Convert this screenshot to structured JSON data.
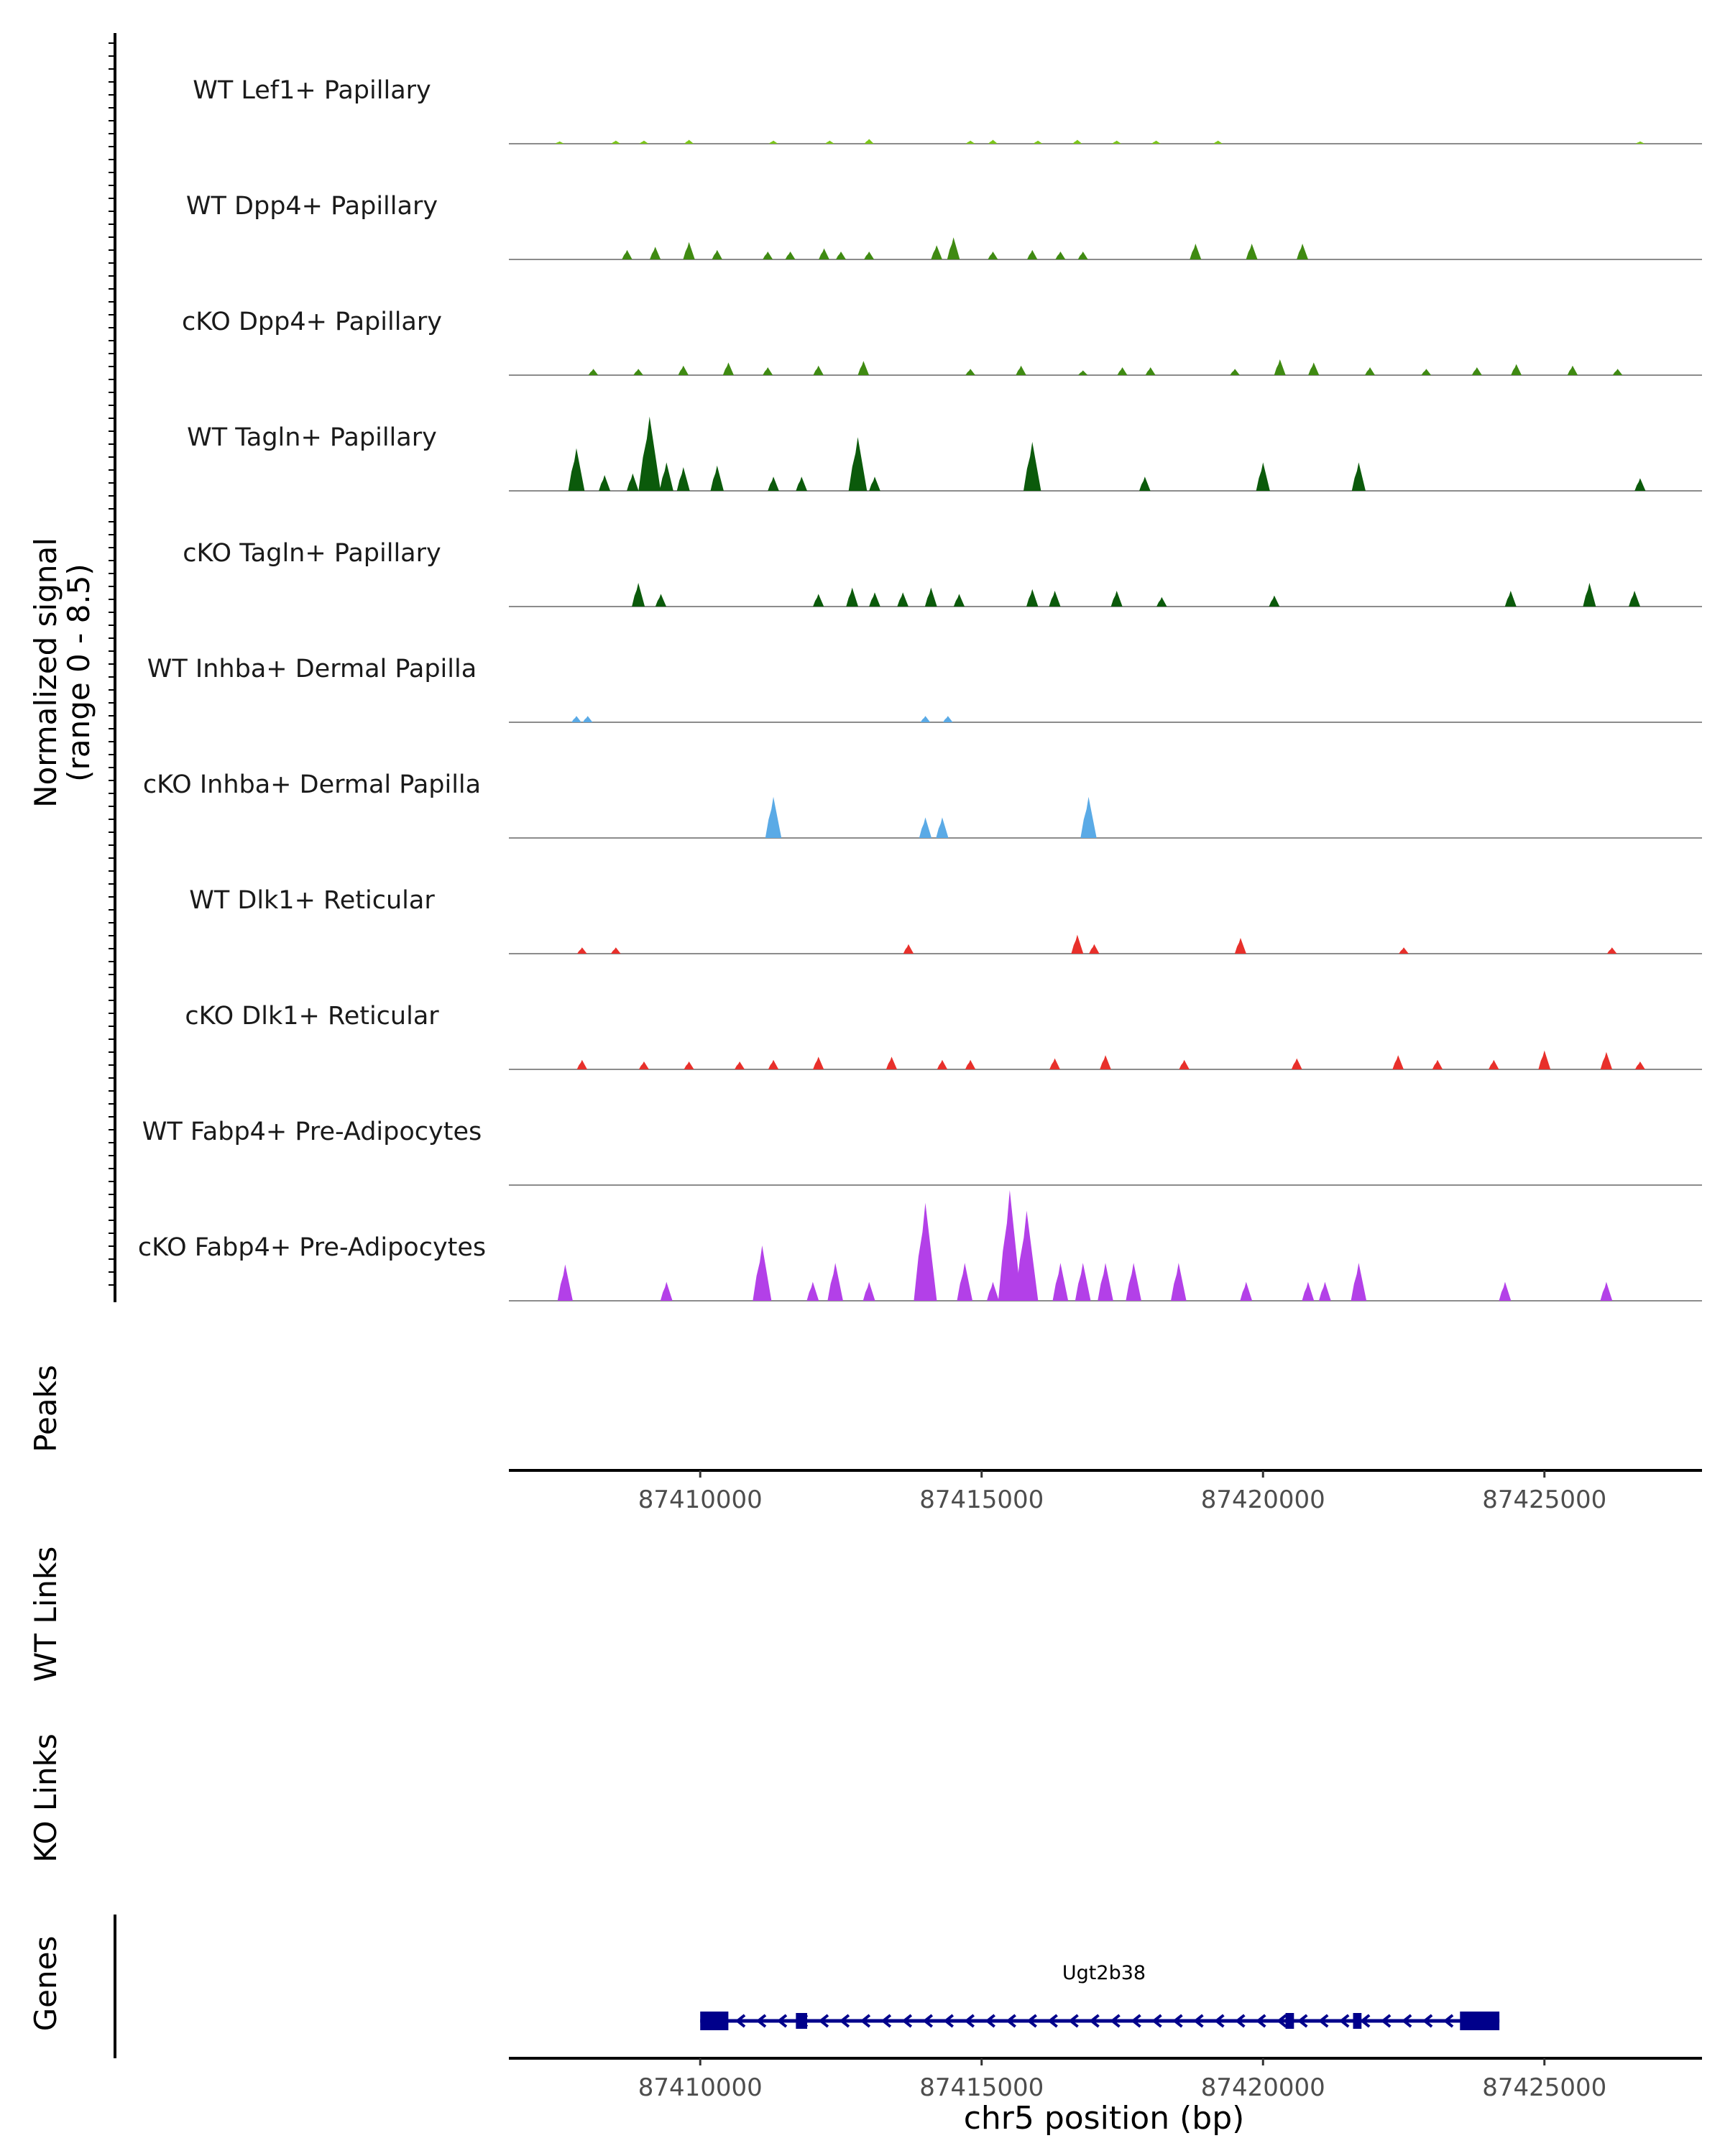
{
  "chart_data": {
    "type": "area",
    "title": "",
    "chromosome": "chr5",
    "xlabel": "chr5 position (bp)",
    "xlim": [
      87406600,
      87427800
    ],
    "xticks": [
      87410000,
      87415000,
      87420000,
      87425000
    ],
    "xtick_labels": [
      "87410000",
      "87415000",
      "87420000",
      "87425000"
    ],
    "ylabel": "Normalized signal",
    "ylabel_range": "(range 0 - 8.5)",
    "ylim": [
      0,
      8.5
    ],
    "tracks": [
      {
        "name": "WT Lef1+ Papillary",
        "color": "#7cc61a",
        "peaks": [
          [
            87407500,
            0.15
          ],
          [
            87408500,
            0.2
          ],
          [
            87409000,
            0.2
          ],
          [
            87409800,
            0.25
          ],
          [
            87411300,
            0.2
          ],
          [
            87412300,
            0.2
          ],
          [
            87413000,
            0.3
          ],
          [
            87414800,
            0.2
          ],
          [
            87415200,
            0.25
          ],
          [
            87416000,
            0.2
          ],
          [
            87416700,
            0.25
          ],
          [
            87417400,
            0.2
          ],
          [
            87418100,
            0.2
          ],
          [
            87419200,
            0.2
          ],
          [
            87426700,
            0.15
          ]
        ]
      },
      {
        "name": "WT Dpp4+ Papillary",
        "color": "#3f8a12",
        "peaks": [
          [
            87408700,
            0.6
          ],
          [
            87409200,
            0.8
          ],
          [
            87409800,
            1.1
          ],
          [
            87410300,
            0.6
          ],
          [
            87411200,
            0.5
          ],
          [
            87411600,
            0.5
          ],
          [
            87412200,
            0.7
          ],
          [
            87412500,
            0.5
          ],
          [
            87413000,
            0.5
          ],
          [
            87414200,
            0.9
          ],
          [
            87414500,
            1.4
          ],
          [
            87415200,
            0.5
          ],
          [
            87415900,
            0.6
          ],
          [
            87416400,
            0.5
          ],
          [
            87416800,
            0.5
          ],
          [
            87418800,
            1.0
          ],
          [
            87419800,
            1.0
          ],
          [
            87420700,
            1.0
          ]
        ]
      },
      {
        "name": "cKO Dpp4+ Papillary",
        "color": "#3f8a12",
        "peaks": [
          [
            87408100,
            0.4
          ],
          [
            87408900,
            0.4
          ],
          [
            87409700,
            0.6
          ],
          [
            87410500,
            0.8
          ],
          [
            87411200,
            0.5
          ],
          [
            87412100,
            0.6
          ],
          [
            87412900,
            0.9
          ],
          [
            87414800,
            0.4
          ],
          [
            87415700,
            0.6
          ],
          [
            87416800,
            0.3
          ],
          [
            87417500,
            0.5
          ],
          [
            87418000,
            0.5
          ],
          [
            87419500,
            0.4
          ],
          [
            87420300,
            1.0
          ],
          [
            87420900,
            0.8
          ],
          [
            87421900,
            0.5
          ],
          [
            87422900,
            0.4
          ],
          [
            87423800,
            0.5
          ],
          [
            87424500,
            0.7
          ],
          [
            87425500,
            0.6
          ],
          [
            87426300,
            0.4
          ]
        ]
      },
      {
        "name": "WT Tagln+ Papillary",
        "color": "#0b5a0b",
        "peaks": [
          [
            87407800,
            2.7
          ],
          [
            87408300,
            1.0
          ],
          [
            87408800,
            1.1
          ],
          [
            87409100,
            4.7
          ],
          [
            87409400,
            1.8
          ],
          [
            87409700,
            1.5
          ],
          [
            87410300,
            1.6
          ],
          [
            87411300,
            0.9
          ],
          [
            87411800,
            0.9
          ],
          [
            87412800,
            3.4
          ],
          [
            87413100,
            0.9
          ],
          [
            87415900,
            3.1
          ],
          [
            87417900,
            0.9
          ],
          [
            87420000,
            1.8
          ],
          [
            87421700,
            1.8
          ],
          [
            87426700,
            0.8
          ]
        ]
      },
      {
        "name": "cKO Tagln+ Papillary",
        "color": "#0b5a0b",
        "peaks": [
          [
            87408900,
            1.5
          ],
          [
            87409300,
            0.8
          ],
          [
            87412100,
            0.8
          ],
          [
            87412700,
            1.2
          ],
          [
            87413100,
            0.9
          ],
          [
            87413600,
            0.9
          ],
          [
            87414100,
            1.2
          ],
          [
            87414600,
            0.8
          ],
          [
            87415900,
            1.1
          ],
          [
            87416300,
            1.0
          ],
          [
            87417400,
            1.0
          ],
          [
            87418200,
            0.6
          ],
          [
            87420200,
            0.7
          ],
          [
            87424400,
            1.0
          ],
          [
            87425800,
            1.5
          ],
          [
            87426600,
            1.0
          ]
        ]
      },
      {
        "name": "WT Inhba+ Dermal Papilla",
        "color": "#5aaae6",
        "peaks": [
          [
            87407800,
            0.4
          ],
          [
            87408000,
            0.4
          ],
          [
            87414000,
            0.4
          ],
          [
            87414400,
            0.4
          ]
        ]
      },
      {
        "name": "cKO Inhba+ Dermal Papilla",
        "color": "#5aaae6",
        "peaks": [
          [
            87411300,
            2.6
          ],
          [
            87414000,
            1.3
          ],
          [
            87414300,
            1.3
          ],
          [
            87416900,
            2.6
          ]
        ]
      },
      {
        "name": "WT Dlk1+ Reticular",
        "color": "#e8302b",
        "peaks": [
          [
            87407900,
            0.4
          ],
          [
            87408500,
            0.4
          ],
          [
            87413700,
            0.6
          ],
          [
            87416700,
            1.2
          ],
          [
            87417000,
            0.6
          ],
          [
            87419600,
            1.0
          ],
          [
            87422500,
            0.4
          ],
          [
            87426200,
            0.4
          ]
        ]
      },
      {
        "name": "cKO Dlk1+ Reticular",
        "color": "#e8302b",
        "peaks": [
          [
            87407900,
            0.6
          ],
          [
            87409000,
            0.5
          ],
          [
            87409800,
            0.5
          ],
          [
            87410700,
            0.5
          ],
          [
            87411300,
            0.6
          ],
          [
            87412100,
            0.8
          ],
          [
            87413400,
            0.8
          ],
          [
            87414300,
            0.6
          ],
          [
            87414800,
            0.6
          ],
          [
            87416300,
            0.7
          ],
          [
            87417200,
            0.9
          ],
          [
            87418600,
            0.6
          ],
          [
            87420600,
            0.7
          ],
          [
            87422400,
            0.9
          ],
          [
            87423100,
            0.6
          ],
          [
            87424100,
            0.6
          ],
          [
            87425000,
            1.2
          ],
          [
            87426100,
            1.1
          ],
          [
            87426700,
            0.5
          ]
        ]
      },
      {
        "name": "WT Fabp4+ Pre-Adipocytes",
        "color": "#b340e8",
        "peaks": []
      },
      {
        "name": "cKO Fabp4+ Pre-Adipocytes",
        "color": "#b340e8",
        "peaks": [
          [
            87407600,
            2.3
          ],
          [
            87409400,
            1.2
          ],
          [
            87411100,
            3.5
          ],
          [
            87412000,
            1.2
          ],
          [
            87412400,
            2.4
          ],
          [
            87413000,
            1.2
          ],
          [
            87414000,
            6.2
          ],
          [
            87414700,
            2.4
          ],
          [
            87415200,
            1.2
          ],
          [
            87415500,
            7.0
          ],
          [
            87415800,
            5.7
          ],
          [
            87416400,
            2.4
          ],
          [
            87416800,
            2.4
          ],
          [
            87417200,
            2.4
          ],
          [
            87417700,
            2.4
          ],
          [
            87418500,
            2.4
          ],
          [
            87419700,
            1.2
          ],
          [
            87420800,
            1.2
          ],
          [
            87421100,
            1.2
          ],
          [
            87421700,
            2.4
          ],
          [
            87424300,
            1.2
          ],
          [
            87426100,
            1.2
          ]
        ]
      }
    ],
    "panels": {
      "peaks_label": "Peaks",
      "wt_links_label": "WT Links",
      "ko_links_label": "KO Links",
      "genes_label": "Genes"
    },
    "gene": {
      "name": "Ugt2b38",
      "start": 87410000,
      "end": 87424200,
      "strand": "-",
      "color": "#00008b",
      "exons": [
        [
          87410000,
          87410500
        ],
        [
          87411700,
          87411900
        ],
        [
          87420400,
          87420550
        ],
        [
          87421600,
          87421750
        ],
        [
          87423500,
          87424200
        ]
      ]
    }
  }
}
